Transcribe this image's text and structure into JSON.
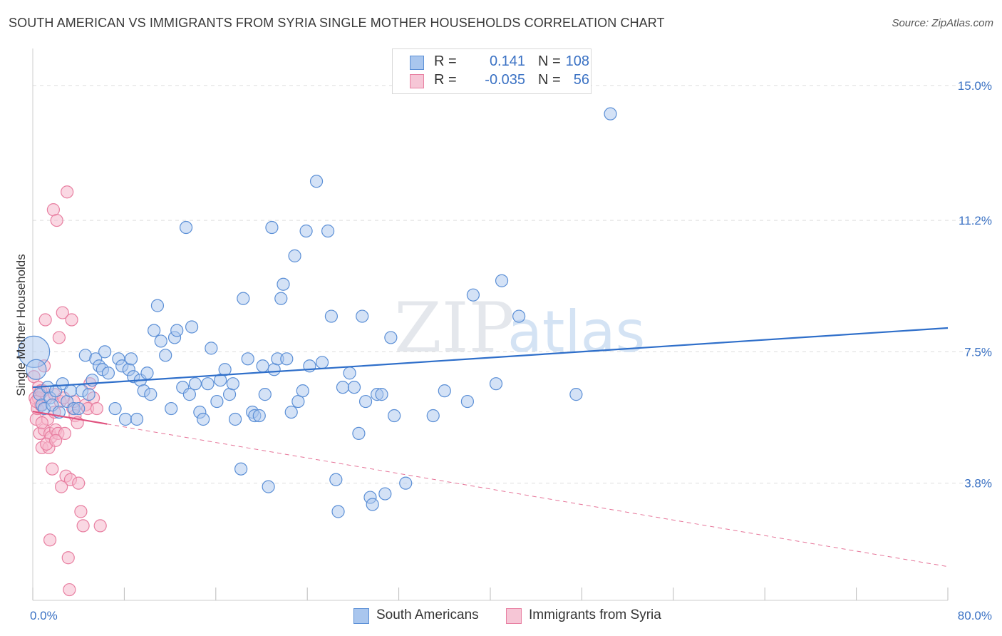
{
  "header": {
    "title": "SOUTH AMERICAN VS IMMIGRANTS FROM SYRIA SINGLE MOTHER HOUSEHOLDS CORRELATION CHART",
    "source": "Source: ZipAtlas.com"
  },
  "legend_top": {
    "rows": [
      {
        "r_label": "R =",
        "r_value": "0.141",
        "n_label": "N =",
        "n_value": "108"
      },
      {
        "r_label": "R =",
        "r_value": "-0.035",
        "n_label": "N =",
        "n_value": "56"
      }
    ]
  },
  "legend_bottom": {
    "items": [
      {
        "label": "South Americans"
      },
      {
        "label": "Immigrants from Syria"
      }
    ]
  },
  "watermark": {
    "zip": "ZIP",
    "atlas": "atlas"
  },
  "colors": {
    "blue_fill": "#a9c6ee",
    "blue_stroke": "#5b8fd6",
    "blue_line": "#2f6fca",
    "pink_fill": "#f6b8cc",
    "pink_stroke": "#e87fa1",
    "pink_line": "#e0527f",
    "grid": "#dddddd",
    "tick_label": "#3b72c4"
  },
  "chart_data": {
    "type": "scatter",
    "title": "SOUTH AMERICAN VS IMMIGRANTS FROM SYRIA SINGLE MOTHER HOUSEHOLDS CORRELATION CHART",
    "xlabel": "",
    "ylabel": "Single Mother Households",
    "xlim": [
      0,
      80
    ],
    "ylim": [
      0.5,
      16
    ],
    "x_tick_labels": [
      {
        "value": 0,
        "label": "0.0%"
      },
      {
        "value": 80,
        "label": "80.0%"
      }
    ],
    "y_ticks": [
      {
        "value": 3.8,
        "label": "3.8%"
      },
      {
        "value": 7.5,
        "label": "7.5%"
      },
      {
        "value": 11.2,
        "label": "11.2%"
      },
      {
        "value": 15.0,
        "label": "15.0%"
      }
    ],
    "x_minor_ticks": [
      0,
      8,
      16,
      24,
      32,
      40,
      48,
      56,
      64,
      72,
      80
    ],
    "grid": true,
    "series": [
      {
        "name": "South Americans",
        "color": "#a9c6ee",
        "trend": {
          "x0": 0,
          "y0": 6.5,
          "x1": 80,
          "y1": 8.17,
          "dashed_ext": false
        },
        "points": [
          [
            0.1,
            7.5
          ],
          [
            0.3,
            7.0
          ],
          [
            0.6,
            6.3
          ],
          [
            0.8,
            6.0
          ],
          [
            1.0,
            5.9
          ],
          [
            1.3,
            6.5
          ],
          [
            1.5,
            6.2
          ],
          [
            1.7,
            6.0
          ],
          [
            2.0,
            6.4
          ],
          [
            2.3,
            5.8
          ],
          [
            2.6,
            6.6
          ],
          [
            3.0,
            6.1
          ],
          [
            3.3,
            6.4
          ],
          [
            3.6,
            5.9
          ],
          [
            4.0,
            5.9
          ],
          [
            4.3,
            6.4
          ],
          [
            4.6,
            7.4
          ],
          [
            4.9,
            6.3
          ],
          [
            5.2,
            6.7
          ],
          [
            5.5,
            7.3
          ],
          [
            5.8,
            7.1
          ],
          [
            6.1,
            7.0
          ],
          [
            6.3,
            7.5
          ],
          [
            6.6,
            6.9
          ],
          [
            7.2,
            5.9
          ],
          [
            7.5,
            7.3
          ],
          [
            7.8,
            7.1
          ],
          [
            8.1,
            5.6
          ],
          [
            8.4,
            7.0
          ],
          [
            8.6,
            7.3
          ],
          [
            8.8,
            6.8
          ],
          [
            9.1,
            5.6
          ],
          [
            9.4,
            6.7
          ],
          [
            9.7,
            6.4
          ],
          [
            10.0,
            6.9
          ],
          [
            10.3,
            6.3
          ],
          [
            10.6,
            8.1
          ],
          [
            10.9,
            8.8
          ],
          [
            11.2,
            7.8
          ],
          [
            11.6,
            7.4
          ],
          [
            12.1,
            5.9
          ],
          [
            12.4,
            7.9
          ],
          [
            12.6,
            8.1
          ],
          [
            13.1,
            6.5
          ],
          [
            13.4,
            11.0
          ],
          [
            13.7,
            6.3
          ],
          [
            13.9,
            8.2
          ],
          [
            14.2,
            6.6
          ],
          [
            14.6,
            5.8
          ],
          [
            14.9,
            5.6
          ],
          [
            15.3,
            6.6
          ],
          [
            15.6,
            7.6
          ],
          [
            16.1,
            6.1
          ],
          [
            16.4,
            6.7
          ],
          [
            16.8,
            7.0
          ],
          [
            17.2,
            6.3
          ],
          [
            17.5,
            6.6
          ],
          [
            17.7,
            5.6
          ],
          [
            18.2,
            4.2
          ],
          [
            18.4,
            9.0
          ],
          [
            18.8,
            7.3
          ],
          [
            19.2,
            5.8
          ],
          [
            19.4,
            5.7
          ],
          [
            19.8,
            5.7
          ],
          [
            20.1,
            7.1
          ],
          [
            20.3,
            6.3
          ],
          [
            20.6,
            3.7
          ],
          [
            20.9,
            11.0
          ],
          [
            21.1,
            7.0
          ],
          [
            21.4,
            7.3
          ],
          [
            21.7,
            9.0
          ],
          [
            21.9,
            9.4
          ],
          [
            22.2,
            7.3
          ],
          [
            22.6,
            5.8
          ],
          [
            22.9,
            10.2
          ],
          [
            23.2,
            6.1
          ],
          [
            23.6,
            6.4
          ],
          [
            23.9,
            10.9
          ],
          [
            24.2,
            7.1
          ],
          [
            24.8,
            12.3
          ],
          [
            25.3,
            7.2
          ],
          [
            25.8,
            10.9
          ],
          [
            26.1,
            8.5
          ],
          [
            26.5,
            3.9
          ],
          [
            26.7,
            3.0
          ],
          [
            27.1,
            6.5
          ],
          [
            27.7,
            6.9
          ],
          [
            28.1,
            6.5
          ],
          [
            28.5,
            5.2
          ],
          [
            28.8,
            8.5
          ],
          [
            29.1,
            6.1
          ],
          [
            29.5,
            3.4
          ],
          [
            29.7,
            3.2
          ],
          [
            30.1,
            6.3
          ],
          [
            30.5,
            6.3
          ],
          [
            30.8,
            3.5
          ],
          [
            31.3,
            7.9
          ],
          [
            31.6,
            5.7
          ],
          [
            32.6,
            3.8
          ],
          [
            35.0,
            5.7
          ],
          [
            36.0,
            6.4
          ],
          [
            38.0,
            6.1
          ],
          [
            38.5,
            9.1
          ],
          [
            40.5,
            6.6
          ],
          [
            41.0,
            9.5
          ],
          [
            42.5,
            8.5
          ],
          [
            47.5,
            6.3
          ],
          [
            50.5,
            14.2
          ]
        ]
      },
      {
        "name": "Immigrants from Syria",
        "color": "#f6b8cc",
        "trend": {
          "x0": 0,
          "y0": 5.82,
          "x1": 80,
          "y1": 1.45,
          "solid_until_x": 6.5,
          "dashed_ext": true
        },
        "points": [
          [
            0.1,
            6.8
          ],
          [
            0.2,
            6.2
          ],
          [
            0.3,
            5.6
          ],
          [
            0.4,
            5.9
          ],
          [
            0.5,
            6.5
          ],
          [
            0.6,
            5.2
          ],
          [
            0.7,
            6.0
          ],
          [
            0.8,
            4.8
          ],
          [
            0.9,
            6.4
          ],
          [
            1.0,
            5.3
          ],
          [
            1.1,
            8.4
          ],
          [
            1.2,
            6.2
          ],
          [
            1.3,
            5.6
          ],
          [
            1.4,
            4.8
          ],
          [
            1.5,
            5.2
          ],
          [
            1.6,
            5.1
          ],
          [
            1.7,
            4.2
          ],
          [
            1.8,
            11.5
          ],
          [
            1.9,
            6.3
          ],
          [
            2.0,
            5.3
          ],
          [
            2.1,
            11.2
          ],
          [
            2.2,
            5.2
          ],
          [
            2.3,
            7.9
          ],
          [
            2.4,
            6.1
          ],
          [
            2.5,
            3.7
          ],
          [
            2.6,
            8.6
          ],
          [
            2.7,
            6.2
          ],
          [
            2.8,
            5.2
          ],
          [
            2.9,
            4.0
          ],
          [
            3.0,
            12.0
          ],
          [
            3.1,
            1.7
          ],
          [
            3.2,
            0.8
          ],
          [
            3.3,
            3.9
          ],
          [
            3.4,
            8.4
          ],
          [
            3.5,
            5.9
          ],
          [
            3.6,
            6.1
          ],
          [
            3.7,
            5.7
          ],
          [
            3.9,
            5.5
          ],
          [
            4.0,
            3.8
          ],
          [
            4.2,
            3.0
          ],
          [
            4.4,
            2.6
          ],
          [
            4.6,
            6.0
          ],
          [
            4.8,
            5.9
          ],
          [
            5.0,
            6.6
          ],
          [
            5.3,
            6.2
          ],
          [
            5.6,
            5.9
          ],
          [
            0.5,
            6.2
          ],
          [
            1.0,
            7.1
          ],
          [
            1.5,
            2.2
          ],
          [
            0.8,
            5.5
          ],
          [
            1.2,
            4.9
          ],
          [
            2.0,
            5.0
          ],
          [
            0.3,
            6.1
          ],
          [
            0.7,
            6.4
          ],
          [
            1.9,
            5.8
          ],
          [
            5.9,
            2.6
          ]
        ]
      }
    ]
  }
}
